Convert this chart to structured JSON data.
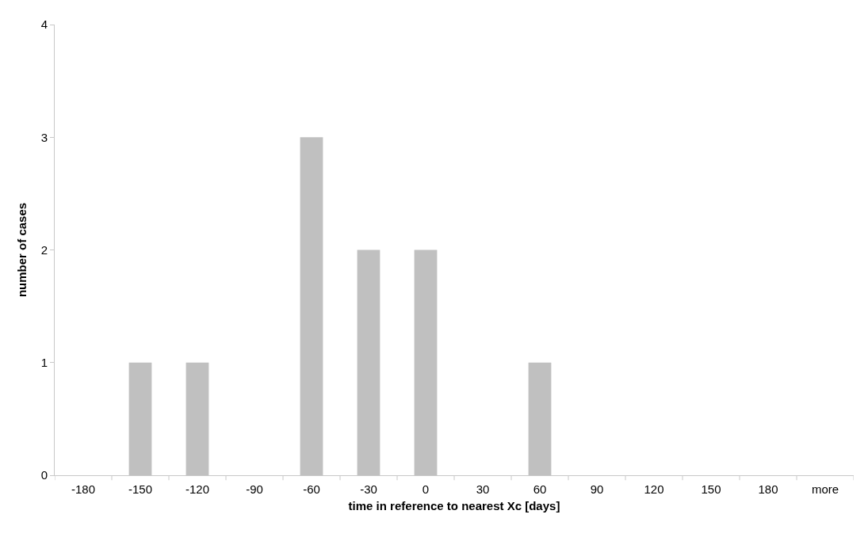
{
  "chart_data": {
    "type": "bar",
    "xlabel": "time in reference to nearest Xc [days]",
    "ylabel": "number of cases",
    "categories": [
      "-180",
      "-150",
      "-120",
      "-90",
      "-60",
      "-30",
      "0",
      "30",
      "60",
      "90",
      "120",
      "150",
      "180",
      "more"
    ],
    "values": [
      0,
      1,
      1,
      0,
      3,
      2,
      2,
      0,
      1,
      0,
      0,
      0,
      0,
      0
    ],
    "color": "#c0c0c0",
    "ylim": [
      0,
      4
    ],
    "yticks": [
      0,
      1,
      2,
      3,
      4
    ]
  }
}
